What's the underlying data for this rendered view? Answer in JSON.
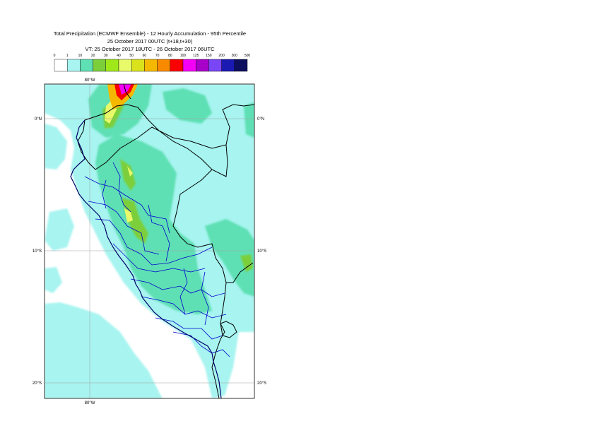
{
  "title": {
    "line1": "Total Precipitation (ECMWF Ensemble) - 12 Hourly Accumulation - 95th Percentile",
    "line2": "25 October 2017 00UTC (t+18,t+30)",
    "line3": "VT: 25 October 2017 18UTC - 26 October 2017 06UTC"
  },
  "legend": {
    "thresholds": [
      "0",
      "1",
      "10",
      "20",
      "30",
      "40",
      "50",
      "60",
      "70",
      "80",
      "100",
      "125",
      "150",
      "200",
      "300",
      "500"
    ],
    "colors": [
      "#ffffff",
      "#a7f4f0",
      "#5fe0b4",
      "#7ccf3a",
      "#9fe81a",
      "#e8f96a",
      "#d9e21b",
      "#f5b800",
      "#f98a00",
      "#fa0000",
      "#f400f6",
      "#a700c8",
      "#7a45f4",
      "#1a1ab2",
      "#0e0e5e"
    ]
  },
  "axes": {
    "lon_top": "80°W",
    "lon_bottom": "80°W",
    "lat_labels": [
      "0°N",
      "10°S",
      "20°S"
    ]
  }
}
